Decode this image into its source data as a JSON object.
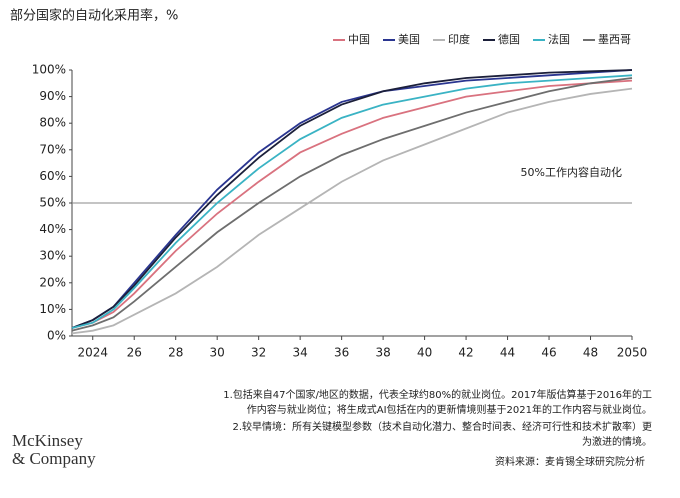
{
  "chart_data": {
    "type": "line",
    "title": "部分国家的自动化采用率，%",
    "x": [
      2023,
      2024,
      2025,
      2026,
      2028,
      2030,
      2032,
      2034,
      2036,
      2038,
      2040,
      2042,
      2044,
      2046,
      2048,
      2050
    ],
    "xlim": [
      2023,
      2050
    ],
    "xticks": [
      2024,
      {
        "value": 2026,
        "label": "26"
      },
      {
        "value": 2028,
        "label": "28"
      },
      {
        "value": 2030,
        "label": "30"
      },
      {
        "value": 2032,
        "label": "32"
      },
      {
        "value": 2034,
        "label": "34"
      },
      {
        "value": 2036,
        "label": "36"
      },
      {
        "value": 2038,
        "label": "38"
      },
      {
        "value": 2040,
        "label": "40"
      },
      {
        "value": 2042,
        "label": "42"
      },
      {
        "value": 2044,
        "label": "44"
      },
      {
        "value": 2046,
        "label": "46"
      },
      {
        "value": 2048,
        "label": "48"
      },
      2050
    ],
    "ylim": [
      0,
      100
    ],
    "yticks": [
      {
        "value": 0,
        "label": "0%"
      },
      {
        "value": 10,
        "label": "10%"
      },
      {
        "value": 20,
        "label": "20%"
      },
      {
        "value": 30,
        "label": "30%"
      },
      {
        "value": 40,
        "label": "40%"
      },
      {
        "value": 50,
        "label": "50%"
      },
      {
        "value": 60,
        "label": "60%"
      },
      {
        "value": 70,
        "label": "70%"
      },
      {
        "value": 80,
        "label": "80%"
      },
      {
        "value": 90,
        "label": "90%"
      },
      {
        "value": 100,
        "label": "100%"
      }
    ],
    "reference_line": {
      "value": 50,
      "label": "50%工作内容自动化"
    },
    "series": [
      {
        "name": "中国",
        "color": "#d9727f",
        "values": [
          3,
          5,
          9,
          16,
          32,
          46,
          58,
          69,
          76,
          82,
          86,
          90,
          92,
          94,
          95,
          96
        ]
      },
      {
        "name": "美国",
        "color": "#2a3590",
        "values": [
          3,
          6,
          11,
          20,
          38,
          55,
          69,
          80,
          88,
          92,
          94,
          96,
          97,
          98,
          99,
          100
        ]
      },
      {
        "name": "印度",
        "color": "#b5b5b5",
        "values": [
          1,
          2,
          4,
          8,
          16,
          26,
          38,
          48,
          58,
          66,
          72,
          78,
          84,
          88,
          91,
          93
        ]
      },
      {
        "name": "德国",
        "color": "#1b1f3a",
        "values": [
          3,
          6,
          11,
          19,
          37,
          53,
          67,
          79,
          87,
          92,
          95,
          97,
          98,
          99,
          99.5,
          100
        ]
      },
      {
        "name": "法国",
        "color": "#3ab3c4",
        "values": [
          3,
          5,
          10,
          18,
          35,
          50,
          63,
          74,
          82,
          87,
          90,
          93,
          95,
          96,
          97,
          98
        ]
      },
      {
        "name": "墨西哥",
        "color": "#6e6e6e",
        "values": [
          2,
          4,
          7,
          13,
          26,
          39,
          50,
          60,
          68,
          74,
          79,
          84,
          88,
          92,
          95,
          97
        ]
      }
    ],
    "notes": [
      "1.包括来自47个国家/地区的数据，代表全球约80%的就业岗位。2017年版估算基于2016年的工",
      "作内容与就业岗位；将生成式AI包括在内的更新情境则基于2021年的工作内容与就业岗位。",
      "2.较早情境：所有关键模型参数（技术自动化潜力、整合时间表、经济可行性和技术扩散率）更",
      "为激进的情境。"
    ],
    "logo": [
      "McKinsey",
      "& Company"
    ],
    "source": "资料来源：麦肯锡全球研究院分析"
  }
}
